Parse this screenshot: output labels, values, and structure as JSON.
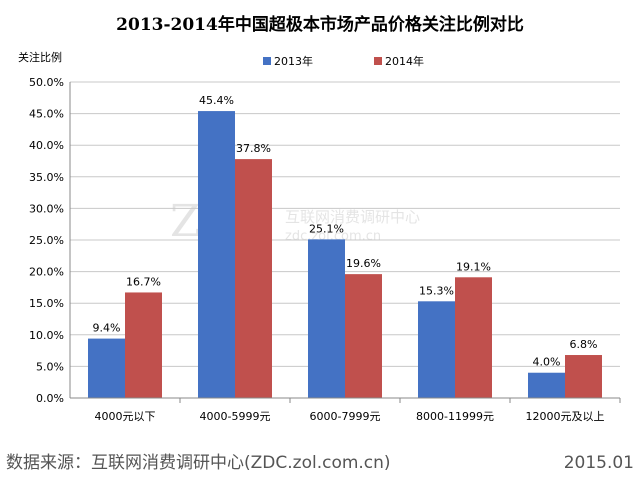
{
  "chart_data": {
    "type": "bar",
    "title": "2013-2014年中国超极本市场产品价格关注比例对比",
    "ylabel": "关注比例",
    "xlabel": "",
    "categories": [
      "4000元以下",
      "4000-5999元",
      "6000-7999元",
      "8000-11999元",
      "12000元及以上"
    ],
    "series": [
      {
        "name": "2013年",
        "values": [
          9.4,
          45.4,
          25.1,
          15.3,
          4.0
        ],
        "labels": [
          "9.4%",
          "45.4%",
          "25.1%",
          "15.3%",
          "4.0%"
        ],
        "color": "#4472C4"
      },
      {
        "name": "2014年",
        "values": [
          16.7,
          37.8,
          19.6,
          19.1,
          6.8
        ],
        "labels": [
          "16.7%",
          "37.8%",
          "19.6%",
          "19.1%",
          "6.8%"
        ],
        "color": "#C0504D"
      }
    ],
    "ylim": [
      0,
      50
    ],
    "yticks": [
      "0.0%",
      "5.0%",
      "10.0%",
      "15.0%",
      "20.0%",
      "25.0%",
      "30.0%",
      "35.0%",
      "40.0%",
      "45.0%",
      "50.0%"
    ],
    "grid": true,
    "legend": "top-center"
  },
  "watermark": {
    "logo": "ZDC",
    "text_cn": "互联网消费调研中心",
    "text_url": "zdc.zol.com.cn"
  },
  "footer": {
    "source": "数据来源：互联网消费调研中心(ZDC.zol.com.cn)",
    "date": "2015.01"
  }
}
